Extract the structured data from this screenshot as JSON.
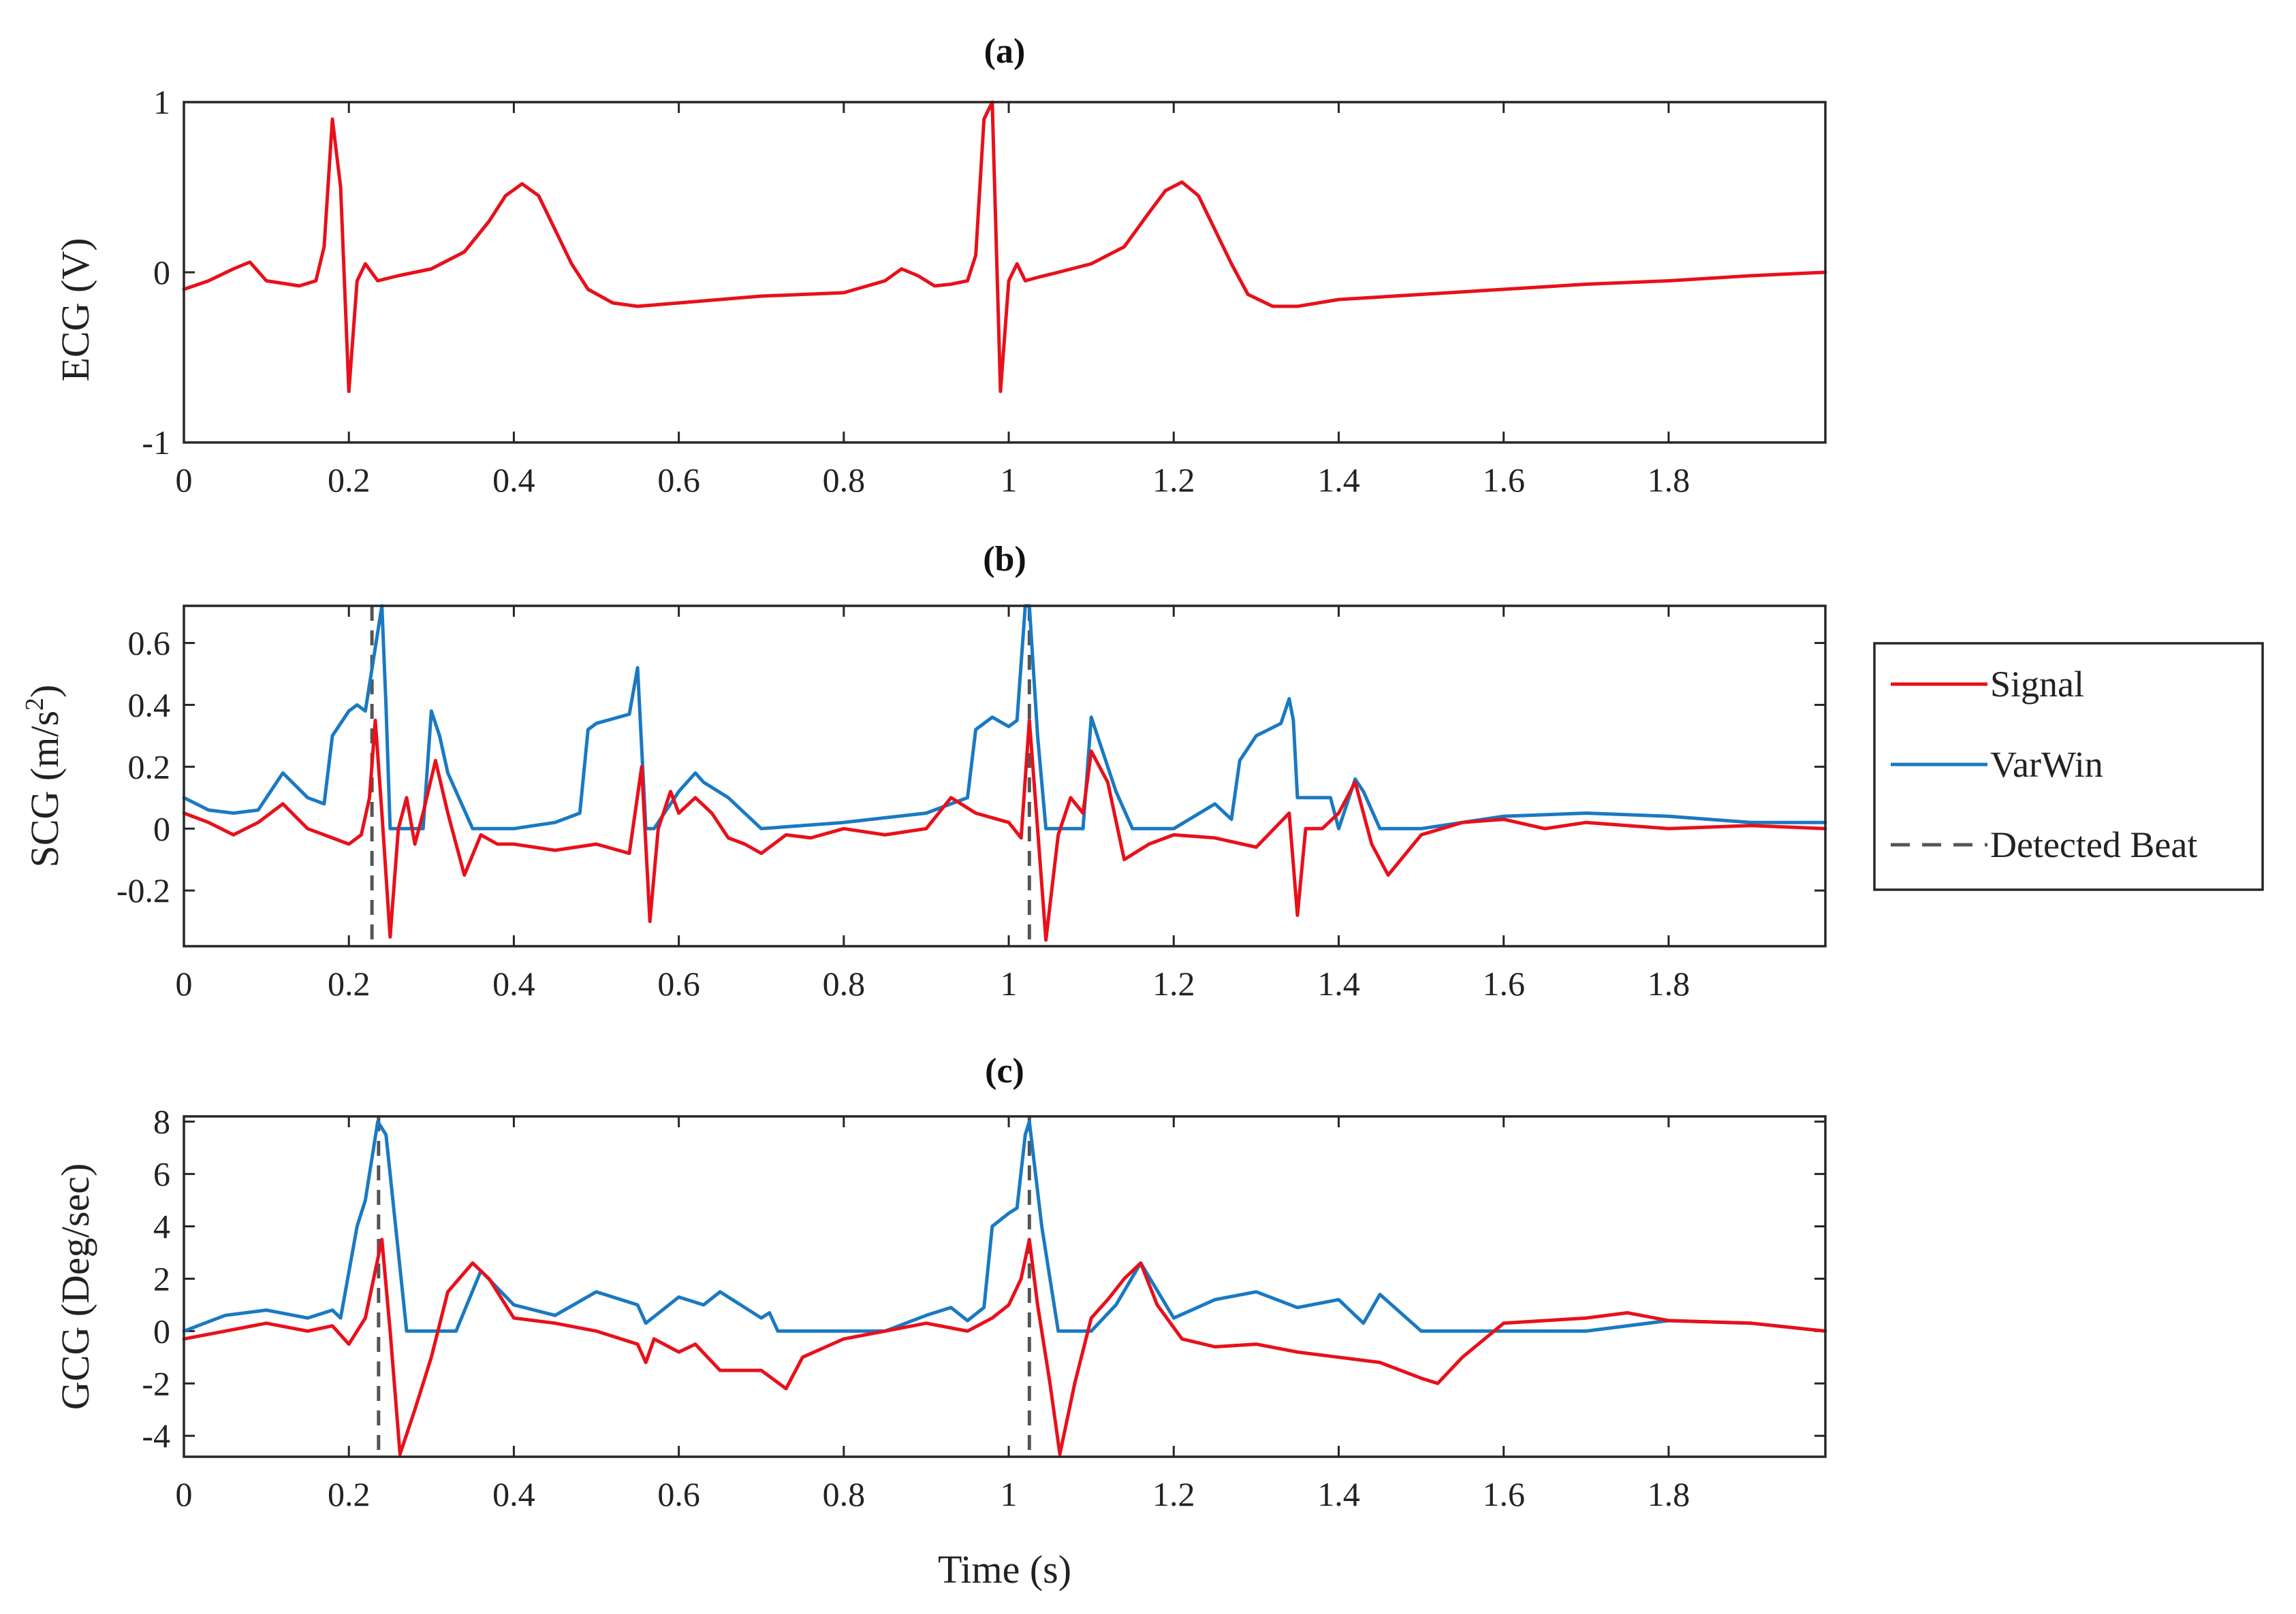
{
  "colors": {
    "signal": "#e8101a",
    "varwin": "#1a79c2",
    "beat": "#555555"
  },
  "chart_data": [
    {
      "type": "line",
      "panel": "a",
      "title": "(a)",
      "xlabel": "",
      "ylabel": "ECG (V)",
      "xlim": [
        0,
        1.99
      ],
      "ylim": [
        -1,
        1
      ],
      "xticks": [
        0,
        0.2,
        0.4,
        0.6,
        0.8,
        1,
        1.2,
        1.4,
        1.6,
        1.8
      ],
      "xtick_labels": [
        "0",
        "0.2",
        "0.4",
        "0.6",
        "0.8",
        "1",
        "1.2",
        "1.4",
        "1.6",
        "1.8"
      ],
      "yticks": [
        -1,
        0,
        1
      ],
      "ytick_labels": [
        "-1",
        "0",
        "1"
      ],
      "series": [
        {
          "name": "ECG",
          "color": "#e8101a",
          "x": [
            0,
            0.03,
            0.06,
            0.08,
            0.1,
            0.14,
            0.16,
            0.17,
            0.18,
            0.19,
            0.2,
            0.21,
            0.22,
            0.235,
            0.26,
            0.3,
            0.34,
            0.37,
            0.39,
            0.41,
            0.43,
            0.45,
            0.47,
            0.49,
            0.52,
            0.55,
            0.6,
            0.7,
            0.8,
            0.85,
            0.87,
            0.89,
            0.91,
            0.93,
            0.95,
            0.96,
            0.97,
            0.98,
            0.99,
            1.0,
            1.01,
            1.02,
            1.035,
            1.06,
            1.1,
            1.14,
            1.17,
            1.19,
            1.21,
            1.23,
            1.25,
            1.27,
            1.29,
            1.32,
            1.35,
            1.4,
            1.5,
            1.6,
            1.7,
            1.8,
            1.9,
            1.99
          ],
          "y": [
            -0.1,
            -0.05,
            0.02,
            0.06,
            -0.05,
            -0.08,
            -0.05,
            0.15,
            0.9,
            0.5,
            -0.7,
            -0.05,
            0.05,
            -0.05,
            -0.02,
            0.02,
            0.12,
            0.3,
            0.45,
            0.52,
            0.45,
            0.25,
            0.05,
            -0.1,
            -0.18,
            -0.2,
            -0.18,
            -0.14,
            -0.12,
            -0.05,
            0.02,
            -0.02,
            -0.08,
            -0.07,
            -0.05,
            0.1,
            0.9,
            1.0,
            -0.7,
            -0.05,
            0.05,
            -0.05,
            -0.03,
            0.0,
            0.05,
            0.15,
            0.35,
            0.48,
            0.53,
            0.45,
            0.25,
            0.05,
            -0.13,
            -0.2,
            -0.2,
            -0.16,
            -0.13,
            -0.1,
            -0.07,
            -0.05,
            -0.02,
            0.0
          ]
        }
      ]
    },
    {
      "type": "line",
      "panel": "b",
      "title": "(b)",
      "xlabel": "",
      "ylabel": "SCG (m/s",
      "ylabel_superscript": "2",
      "ylabel_close": ")",
      "xlim": [
        0,
        1.99
      ],
      "ylim": [
        -0.38,
        0.72
      ],
      "xticks": [
        0,
        0.2,
        0.4,
        0.6,
        0.8,
        1,
        1.2,
        1.4,
        1.6,
        1.8
      ],
      "xtick_labels": [
        "0",
        "0.2",
        "0.4",
        "0.6",
        "0.8",
        "1",
        "1.2",
        "1.4",
        "1.6",
        "1.8"
      ],
      "yticks": [
        -0.2,
        0,
        0.2,
        0.4,
        0.6
      ],
      "ytick_labels": [
        "-0.2",
        "0",
        "0.2",
        "0.4",
        "0.6"
      ],
      "detected_beats": [
        0.228,
        1.025
      ],
      "series": [
        {
          "name": "Signal",
          "color": "#e8101a",
          "x": [
            0,
            0.03,
            0.06,
            0.09,
            0.12,
            0.15,
            0.18,
            0.2,
            0.215,
            0.225,
            0.232,
            0.24,
            0.25,
            0.26,
            0.27,
            0.28,
            0.29,
            0.305,
            0.32,
            0.34,
            0.36,
            0.38,
            0.4,
            0.45,
            0.5,
            0.54,
            0.555,
            0.565,
            0.575,
            0.59,
            0.6,
            0.62,
            0.64,
            0.66,
            0.68,
            0.7,
            0.73,
            0.76,
            0.8,
            0.85,
            0.9,
            0.93,
            0.96,
            1.0,
            1.015,
            1.025,
            1.035,
            1.045,
            1.06,
            1.075,
            1.09,
            1.1,
            1.12,
            1.14,
            1.17,
            1.2,
            1.25,
            1.3,
            1.34,
            1.35,
            1.36,
            1.38,
            1.4,
            1.42,
            1.44,
            1.46,
            1.5,
            1.55,
            1.6,
            1.65,
            1.7,
            1.8,
            1.9,
            1.99
          ],
          "y": [
            0.05,
            0.02,
            -0.02,
            0.02,
            0.08,
            0.0,
            -0.03,
            -0.05,
            -0.02,
            0.1,
            0.35,
            0.05,
            -0.35,
            0.0,
            0.1,
            -0.05,
            0.05,
            0.22,
            0.05,
            -0.15,
            -0.02,
            -0.05,
            -0.05,
            -0.07,
            -0.05,
            -0.08,
            0.2,
            -0.3,
            0.0,
            0.12,
            0.05,
            0.1,
            0.05,
            -0.03,
            -0.05,
            -0.08,
            -0.02,
            -0.03,
            0.0,
            -0.02,
            0.0,
            0.1,
            0.05,
            0.02,
            -0.03,
            0.35,
            0.0,
            -0.36,
            -0.02,
            0.1,
            0.05,
            0.25,
            0.15,
            -0.1,
            -0.05,
            -0.02,
            -0.03,
            -0.06,
            0.05,
            -0.28,
            0.0,
            0.0,
            0.05,
            0.15,
            -0.05,
            -0.15,
            -0.02,
            0.02,
            0.03,
            0.0,
            0.02,
            0.0,
            0.01,
            0.0
          ]
        },
        {
          "name": "VarWin",
          "color": "#1a79c2",
          "x": [
            0,
            0.03,
            0.06,
            0.09,
            0.12,
            0.15,
            0.17,
            0.18,
            0.2,
            0.21,
            0.22,
            0.23,
            0.24,
            0.245,
            0.25,
            0.29,
            0.3,
            0.31,
            0.32,
            0.35,
            0.4,
            0.45,
            0.48,
            0.49,
            0.5,
            0.54,
            0.55,
            0.56,
            0.57,
            0.6,
            0.62,
            0.63,
            0.66,
            0.7,
            0.8,
            0.9,
            0.95,
            0.96,
            0.98,
            1.0,
            1.01,
            1.02,
            1.025,
            1.035,
            1.045,
            1.09,
            1.1,
            1.11,
            1.13,
            1.15,
            1.18,
            1.2,
            1.25,
            1.27,
            1.28,
            1.3,
            1.33,
            1.34,
            1.345,
            1.35,
            1.39,
            1.4,
            1.42,
            1.43,
            1.45,
            1.5,
            1.6,
            1.7,
            1.8,
            1.9,
            1.99
          ],
          "y": [
            0.1,
            0.06,
            0.05,
            0.06,
            0.18,
            0.1,
            0.08,
            0.3,
            0.38,
            0.4,
            0.38,
            0.55,
            0.72,
            0.4,
            0.0,
            0.0,
            0.38,
            0.3,
            0.18,
            0.0,
            0.0,
            0.02,
            0.05,
            0.32,
            0.34,
            0.37,
            0.52,
            0.0,
            0.0,
            0.12,
            0.18,
            0.15,
            0.1,
            0.0,
            0.02,
            0.05,
            0.1,
            0.32,
            0.36,
            0.33,
            0.35,
            0.72,
            0.72,
            0.3,
            0.0,
            0.0,
            0.36,
            0.28,
            0.12,
            0.0,
            0.0,
            0.0,
            0.08,
            0.03,
            0.22,
            0.3,
            0.34,
            0.42,
            0.35,
            0.1,
            0.1,
            0.0,
            0.16,
            0.12,
            0.0,
            0.0,
            0.04,
            0.05,
            0.04,
            0.02,
            0.02
          ]
        }
      ]
    },
    {
      "type": "line",
      "panel": "c",
      "title": "(c)",
      "xlabel": "Time (s)",
      "ylabel": "GCG (Deg/sec)",
      "xlim": [
        0,
        1.99
      ],
      "ylim": [
        -4.8,
        8.2
      ],
      "xticks": [
        0,
        0.2,
        0.4,
        0.6,
        0.8,
        1,
        1.2,
        1.4,
        1.6,
        1.8
      ],
      "xtick_labels": [
        "0",
        "0.2",
        "0.4",
        "0.6",
        "0.8",
        "1",
        "1.2",
        "1.4",
        "1.6",
        "1.8"
      ],
      "yticks": [
        -4,
        -2,
        0,
        2,
        4,
        6,
        8
      ],
      "ytick_labels": [
        "-4",
        "-2",
        "0",
        "2",
        "4",
        "6",
        "8"
      ],
      "detected_beats": [
        0.236,
        1.025
      ],
      "series": [
        {
          "name": "Signal",
          "color": "#e8101a",
          "x": [
            0,
            0.05,
            0.1,
            0.15,
            0.18,
            0.2,
            0.22,
            0.24,
            0.25,
            0.262,
            0.28,
            0.3,
            0.32,
            0.35,
            0.37,
            0.4,
            0.45,
            0.5,
            0.55,
            0.56,
            0.57,
            0.6,
            0.62,
            0.65,
            0.7,
            0.73,
            0.75,
            0.8,
            0.85,
            0.9,
            0.95,
            0.98,
            1.0,
            1.015,
            1.025,
            1.035,
            1.05,
            1.062,
            1.08,
            1.1,
            1.12,
            1.14,
            1.16,
            1.18,
            1.21,
            1.25,
            1.3,
            1.35,
            1.4,
            1.45,
            1.5,
            1.52,
            1.55,
            1.6,
            1.65,
            1.7,
            1.75,
            1.8,
            1.9,
            1.99
          ],
          "y": [
            -0.3,
            0.0,
            0.3,
            0.0,
            0.2,
            -0.5,
            0.5,
            3.5,
            0.0,
            -4.7,
            -3.0,
            -1.0,
            1.5,
            2.6,
            2.0,
            0.5,
            0.3,
            0.0,
            -0.5,
            -1.2,
            -0.3,
            -0.8,
            -0.5,
            -1.5,
            -1.5,
            -2.2,
            -1.0,
            -0.3,
            0.0,
            0.3,
            0.0,
            0.5,
            1.0,
            2.0,
            3.5,
            1.0,
            -2.0,
            -4.7,
            -2.0,
            0.5,
            1.2,
            2.0,
            2.6,
            1.0,
            -0.3,
            -0.6,
            -0.5,
            -0.8,
            -1.0,
            -1.2,
            -1.8,
            -2.0,
            -1.0,
            0.3,
            0.4,
            0.5,
            0.7,
            0.4,
            0.3,
            0.0
          ]
        },
        {
          "name": "VarWin",
          "color": "#1a79c2",
          "x": [
            0,
            0.05,
            0.1,
            0.15,
            0.18,
            0.19,
            0.21,
            0.22,
            0.235,
            0.245,
            0.26,
            0.27,
            0.3,
            0.33,
            0.36,
            0.4,
            0.45,
            0.5,
            0.55,
            0.56,
            0.6,
            0.63,
            0.65,
            0.7,
            0.71,
            0.72,
            0.75,
            0.8,
            0.85,
            0.9,
            0.93,
            0.95,
            0.97,
            0.98,
            1.0,
            1.01,
            1.02,
            1.025,
            1.04,
            1.06,
            1.1,
            1.13,
            1.16,
            1.2,
            1.25,
            1.3,
            1.35,
            1.4,
            1.43,
            1.45,
            1.5,
            1.6,
            1.7,
            1.8,
            1.9,
            1.99
          ],
          "y": [
            0.0,
            0.6,
            0.8,
            0.5,
            0.8,
            0.5,
            4.0,
            5.0,
            8.0,
            7.5,
            3.0,
            0.0,
            0.0,
            0.0,
            2.3,
            1.0,
            0.6,
            1.5,
            1.0,
            0.3,
            1.3,
            1.0,
            1.5,
            0.5,
            0.7,
            0.0,
            0.0,
            0.0,
            0.0,
            0.6,
            0.9,
            0.4,
            0.9,
            4.0,
            4.5,
            4.7,
            7.5,
            8.0,
            4.0,
            0.0,
            0.0,
            1.0,
            2.6,
            0.5,
            1.2,
            1.5,
            0.9,
            1.2,
            0.3,
            1.4,
            0.0,
            0.0,
            0.0,
            0.4,
            0.3,
            0.0
          ]
        }
      ]
    }
  ],
  "legend": {
    "items": [
      {
        "label": "Signal",
        "color": "#e8101a",
        "style": "solid"
      },
      {
        "label": "VarWin",
        "color": "#1a79c2",
        "style": "solid"
      },
      {
        "label": "Detected Beat",
        "color": "#555555",
        "style": "dashed"
      }
    ]
  }
}
